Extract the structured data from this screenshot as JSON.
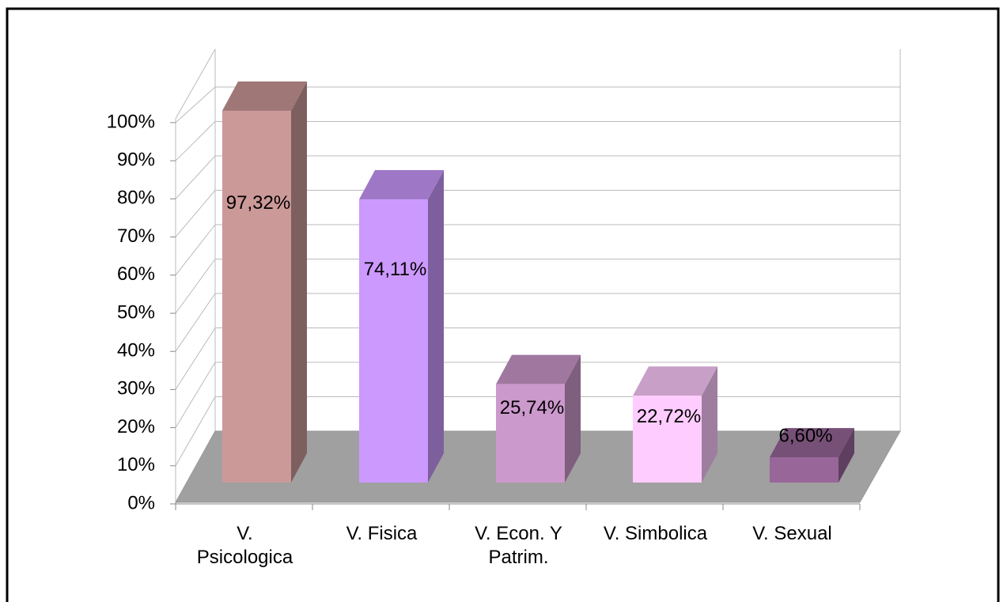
{
  "chart_data": {
    "type": "bar3d",
    "categories": [
      "V.\nPsicologica",
      "V. Fisica",
      "V. Econ. Y\nPatrim.",
      "V. Simbolica",
      "V. Sexual"
    ],
    "values": [
      97.32,
      74.11,
      25.74,
      22.72,
      6.6
    ],
    "value_labels": [
      "97,32%",
      "74,11%",
      "25,74%",
      "22,72%",
      "6,60%"
    ],
    "colors": [
      "#cc9999",
      "#cc99ff",
      "#cc99cc",
      "#ffccff",
      "#996699"
    ],
    "ylim": [
      0,
      100
    ],
    "yticks": [
      {
        "value": 0,
        "label": "0%"
      },
      {
        "value": 10,
        "label": "10%"
      },
      {
        "value": 20,
        "label": "20%"
      },
      {
        "value": 30,
        "label": "30%"
      },
      {
        "value": 40,
        "label": "40%"
      },
      {
        "value": 50,
        "label": "50%"
      },
      {
        "value": 60,
        "label": "60%"
      },
      {
        "value": 70,
        "label": "70%"
      },
      {
        "value": 80,
        "label": "80%"
      },
      {
        "value": 90,
        "label": "90%"
      },
      {
        "value": 100,
        "label": "100%"
      }
    ],
    "grid": true
  }
}
